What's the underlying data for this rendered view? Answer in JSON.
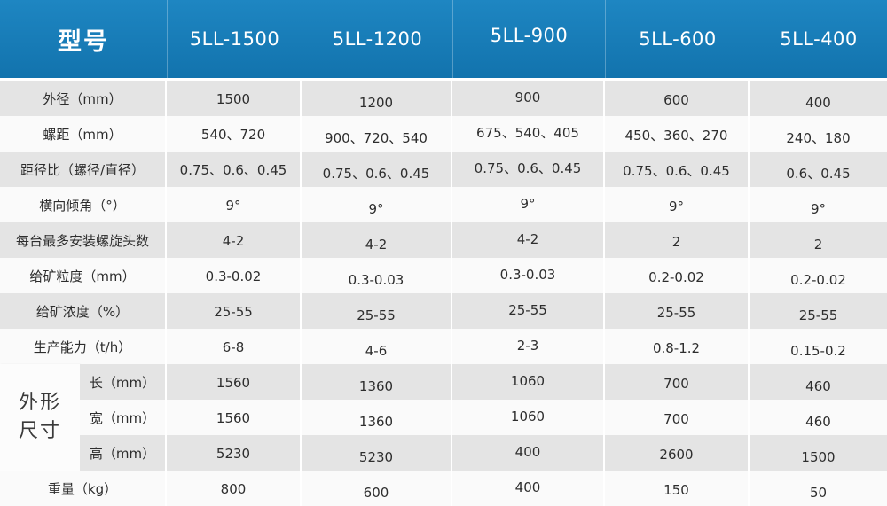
{
  "chart_data": {
    "type": "table",
    "header": {
      "model_label": "型号",
      "models": [
        "5LL-1500",
        "5LL-1200",
        "5LL-900",
        "5LL-600",
        "5LL-400"
      ]
    },
    "rows": [
      {
        "label": "外径（mm）",
        "values": [
          "1500",
          "1200",
          "900",
          "600",
          "400"
        ]
      },
      {
        "label": "螺距（mm）",
        "values": [
          "540、720",
          "900、720、540",
          "675、540、405",
          "450、360、270",
          "240、180"
        ]
      },
      {
        "label": "距径比（螺径/直径）",
        "values": [
          "0.75、0.6、0.45",
          "0.75、0.6、0.45",
          "0.75、0.6、0.45",
          "0.75、0.6、0.45",
          "0.6、0.45"
        ]
      },
      {
        "label": "横向倾角（°）",
        "values": [
          "9°",
          "9°",
          "9°",
          "9°",
          "9°"
        ]
      },
      {
        "label": "每台最多安装螺旋头数",
        "values": [
          "4-2",
          "4-2",
          "4-2",
          "2",
          "2"
        ]
      },
      {
        "label": "给矿粒度（mm）",
        "values": [
          "0.3-0.02",
          "0.3-0.03",
          "0.3-0.03",
          "0.2-0.02",
          "0.2-0.02"
        ]
      },
      {
        "label": "给矿浓度（%）",
        "values": [
          "25-55",
          "25-55",
          "25-55",
          "25-55",
          "25-55"
        ]
      },
      {
        "label": "生产能力（t/h）",
        "values": [
          "6-8",
          "4-6",
          "2-3",
          "0.8-1.2",
          "0.15-0.2"
        ]
      },
      {
        "label": "长（mm）",
        "values": [
          "1560",
          "1360",
          "1060",
          "700",
          "460"
        ]
      },
      {
        "label": "宽（mm）",
        "values": [
          "1560",
          "1360",
          "1060",
          "700",
          "460"
        ]
      },
      {
        "label": "高（mm）",
        "values": [
          "5230",
          "5230",
          "400",
          "2600",
          "1500"
        ]
      },
      {
        "label": "重量（kg）",
        "values": [
          "800",
          "600",
          "400",
          "150",
          "50"
        ]
      }
    ],
    "group_label": {
      "line1": "外形",
      "line2": "尺寸"
    },
    "layout_hints": {
      "group_label_spans_rows": [
        "长（mm）",
        "宽（mm）",
        "高（mm）"
      ],
      "striping": "alternating gray/white rows"
    }
  },
  "colors": {
    "header_blue_top": "#1e86c2",
    "header_blue_bottom": "#1273ad",
    "header_text": "#ffffff",
    "stripe_gray": "#e4e4e4",
    "stripe_light": "#fafafa",
    "body_text": "#2d2d2d"
  }
}
